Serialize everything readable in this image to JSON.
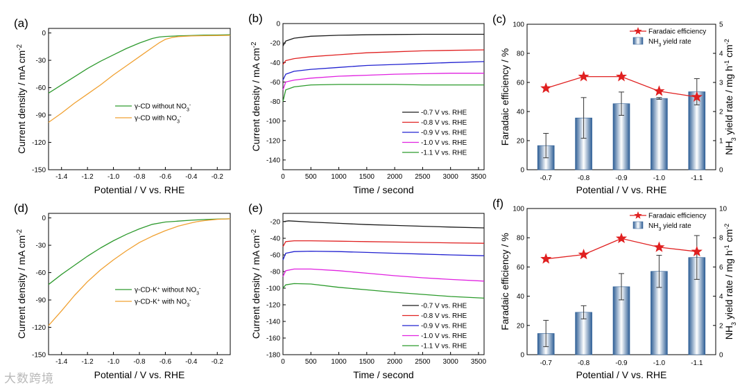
{
  "watermark": "大数跨境",
  "chart_data": [
    {
      "id": "a",
      "panel_label": "(a)",
      "type": "line",
      "title": "",
      "xlabel": "Potential / V vs. RHE",
      "ylabel": "Current density / mA cm⁻²",
      "xlim": [
        -1.5,
        -0.1
      ],
      "ylim": [
        -150,
        5
      ],
      "xticks": [
        -1.4,
        -1.2,
        -1.0,
        -0.8,
        -0.6,
        -0.4,
        -0.2
      ],
      "xticklabels": [
        "-1.4",
        "-1.2",
        "-1.0",
        "-0.8",
        "-0.6",
        "-0.4",
        "-0.2"
      ],
      "yticks": [
        0,
        -30,
        -60,
        -90,
        -120,
        -150
      ],
      "yticklabels": [
        "0",
        "-30",
        "-60",
        "-90",
        "-120",
        "-150"
      ],
      "legend_position": "center-right",
      "series": [
        {
          "name": "γ-CD without NO₃⁻",
          "color": "#2e9a2e",
          "x": [
            -1.5,
            -1.4,
            -1.3,
            -1.2,
            -1.1,
            -1.0,
            -0.9,
            -0.8,
            -0.7,
            -0.65,
            -0.6,
            -0.5,
            -0.4,
            -0.3,
            -0.2,
            -0.1
          ],
          "y": [
            -66,
            -57,
            -48,
            -39,
            -31,
            -24,
            -17,
            -11,
            -6,
            -4.5,
            -3.8,
            -3.2,
            -2.8,
            -2.4,
            -2.2,
            -2
          ]
        },
        {
          "name": "γ-CD with NO₃⁻",
          "color": "#f0a030",
          "x": [
            -1.5,
            -1.4,
            -1.3,
            -1.2,
            -1.1,
            -1.0,
            -0.9,
            -0.8,
            -0.7,
            -0.65,
            -0.6,
            -0.55,
            -0.5,
            -0.4,
            -0.3,
            -0.2,
            -0.1
          ],
          "y": [
            -98,
            -88,
            -77,
            -67,
            -57,
            -46,
            -36,
            -26,
            -16,
            -11,
            -7,
            -5,
            -4,
            -3.3,
            -3,
            -2.8,
            -2.6
          ]
        }
      ]
    },
    {
      "id": "b",
      "panel_label": "(b)",
      "type": "line",
      "title": "",
      "xlabel": "Time / second",
      "ylabel": "Current density / mA cm⁻²",
      "xlim": [
        0,
        3600
      ],
      "ylim": [
        -150,
        0
      ],
      "xticks": [
        0,
        500,
        1000,
        1500,
        2000,
        2500,
        3000,
        3500
      ],
      "xticklabels": [
        "0",
        "500",
        "1000",
        "1500",
        "2000",
        "2500",
        "3000",
        "3500"
      ],
      "yticks": [
        0,
        -20,
        -40,
        -60,
        -80,
        -100,
        -120,
        -140
      ],
      "yticklabels": [
        "0",
        "-20",
        "-40",
        "-60",
        "-80",
        "-100",
        "-120",
        "-140"
      ],
      "legend_position": "lower-right",
      "series": [
        {
          "name": "-0.7 V vs. RHE",
          "color": "#1a1a1a",
          "x": [
            0,
            50,
            200,
            500,
            1000,
            1500,
            2000,
            2500,
            3000,
            3600
          ],
          "y": [
            -23,
            -18,
            -15,
            -13,
            -12,
            -11.5,
            -11.2,
            -11,
            -11,
            -11
          ]
        },
        {
          "name": "-0.8 V vs. RHE",
          "color": "#e02020",
          "x": [
            0,
            50,
            200,
            500,
            1000,
            1500,
            2000,
            2500,
            3000,
            3600
          ],
          "y": [
            -42,
            -38,
            -36,
            -34,
            -32,
            -30,
            -29,
            -28,
            -27.5,
            -27
          ]
        },
        {
          "name": "-0.9 V vs. RHE",
          "color": "#2020d0",
          "x": [
            0,
            50,
            200,
            500,
            1000,
            1500,
            2000,
            2500,
            3000,
            3600
          ],
          "y": [
            -58,
            -52,
            -49,
            -47,
            -45,
            -43,
            -42,
            -41,
            -40,
            -39
          ]
        },
        {
          "name": "-1.0 V vs. RHE",
          "color": "#e020e0",
          "x": [
            0,
            50,
            200,
            500,
            1000,
            1500,
            2000,
            2500,
            3000,
            3600
          ],
          "y": [
            -68,
            -60,
            -58,
            -56,
            -54,
            -53,
            -52,
            -51.5,
            -51,
            -51
          ]
        },
        {
          "name": "-1.1 V vs. RHE",
          "color": "#2a9a2a",
          "x": [
            0,
            50,
            200,
            500,
            1000,
            1500,
            2000,
            2500,
            3000,
            3600
          ],
          "y": [
            -80,
            -68,
            -65,
            -63,
            -62.5,
            -62.5,
            -62.5,
            -63,
            -63,
            -63
          ]
        }
      ]
    },
    {
      "id": "c",
      "panel_label": "(c)",
      "type": "bar",
      "xlabel": "Potential / V vs. RHE",
      "ylabel": "Faradaic efficiency / %",
      "y2label": "NH₃ yield rate / mg h⁻¹ cm⁻²",
      "categories": [
        "-0.7",
        "-0.8",
        "-0.9",
        "-1.0",
        "-1.1"
      ],
      "ylim": [
        0,
        100
      ],
      "y2lim": [
        0,
        5
      ],
      "yticks": [
        0,
        20,
        40,
        60,
        80,
        100
      ],
      "yticklabels": [
        "0",
        "20",
        "40",
        "60",
        "80",
        "100"
      ],
      "y2ticks": [
        0,
        1,
        2,
        3,
        4,
        5
      ],
      "y2ticklabels": [
        "0",
        "1",
        "2",
        "3",
        "4",
        "5"
      ],
      "legend_position": "top-right",
      "series": [
        {
          "name": "Faradaic efficiency",
          "kind": "line-star",
          "axis": "left",
          "color": "#e02020",
          "values": [
            56,
            64,
            64,
            54,
            50
          ]
        },
        {
          "name": "NH₃ yield rate",
          "kind": "bar",
          "axis": "right",
          "color": "#5b86b8",
          "values": [
            0.83,
            1.78,
            2.27,
            2.45,
            2.68
          ],
          "errors": [
            0.42,
            0.7,
            0.4,
            0.03,
            0.45
          ]
        }
      ]
    },
    {
      "id": "d",
      "panel_label": "(d)",
      "type": "line",
      "title": "",
      "xlabel": "Potential / V vs. RHE",
      "ylabel": "Current density / mA cm⁻²",
      "xlim": [
        -1.5,
        -0.1
      ],
      "ylim": [
        -150,
        5
      ],
      "xticks": [
        -1.4,
        -1.2,
        -1.0,
        -0.8,
        -0.6,
        -0.4,
        -0.2
      ],
      "xticklabels": [
        "-1.4",
        "-1.2",
        "-1.0",
        "-0.8",
        "-0.6",
        "-0.4",
        "-0.2"
      ],
      "yticks": [
        0,
        -30,
        -60,
        -90,
        -120,
        -150
      ],
      "yticklabels": [
        "0",
        "-30",
        "-60",
        "-90",
        "-120",
        "-150"
      ],
      "legend_position": "center-right",
      "series": [
        {
          "name": "γ-CD-K⁺ without NO₃⁻",
          "color": "#2e9a2e",
          "x": [
            -1.5,
            -1.4,
            -1.3,
            -1.2,
            -1.1,
            -1.0,
            -0.9,
            -0.8,
            -0.7,
            -0.6,
            -0.5,
            -0.4,
            -0.3,
            -0.2,
            -0.1
          ],
          "y": [
            -73,
            -62,
            -52,
            -42,
            -33,
            -25,
            -18,
            -12,
            -7,
            -4.5,
            -3.5,
            -2.5,
            -1.8,
            -1.3,
            -1
          ]
        },
        {
          "name": "γ-CD-K⁺ with NO₃⁻",
          "color": "#f0a030",
          "x": [
            -1.5,
            -1.4,
            -1.3,
            -1.2,
            -1.1,
            -1.0,
            -0.9,
            -0.8,
            -0.7,
            -0.6,
            -0.5,
            -0.4,
            -0.35,
            -0.3,
            -0.2,
            -0.1
          ],
          "y": [
            -118,
            -102,
            -85,
            -70,
            -57,
            -46,
            -36,
            -27,
            -20,
            -14,
            -9,
            -5.5,
            -4,
            -3,
            -1.5,
            -1
          ]
        }
      ]
    },
    {
      "id": "e",
      "panel_label": "(e)",
      "type": "line",
      "title": "",
      "xlabel": "Time / second",
      "ylabel": "Current density / mA cm⁻²",
      "xlim": [
        0,
        3600
      ],
      "ylim": [
        -180,
        -10
      ],
      "xticks": [
        0,
        500,
        1000,
        1500,
        2000,
        2500,
        3000,
        3500
      ],
      "xticklabels": [
        "0",
        "500",
        "1000",
        "1500",
        "2000",
        "2500",
        "3000",
        "3500"
      ],
      "yticks": [
        -20,
        -40,
        -60,
        -80,
        -100,
        -120,
        -140,
        -160,
        -180
      ],
      "yticklabels": [
        "-20",
        "-40",
        "-60",
        "-80",
        "-100",
        "-120",
        "-140",
        "-160",
        "-180"
      ],
      "legend_position": "lower-right",
      "series": [
        {
          "name": "-0.7 V vs. RHE",
          "color": "#1a1a1a",
          "x": [
            0,
            100,
            500,
            1000,
            1500,
            2000,
            2500,
            3000,
            3600
          ],
          "y": [
            -20,
            -19,
            -20.5,
            -22,
            -23.5,
            -24.5,
            -25.5,
            -26.5,
            -27.5
          ]
        },
        {
          "name": "-0.8 V vs. RHE",
          "color": "#e02020",
          "x": [
            0,
            50,
            200,
            500,
            1000,
            1500,
            2000,
            2500,
            3000,
            3600
          ],
          "y": [
            -50,
            -44,
            -43,
            -43,
            -43.5,
            -44,
            -44.5,
            -45,
            -45.5,
            -46
          ]
        },
        {
          "name": "-0.9 V vs. RHE",
          "color": "#2020d0",
          "x": [
            0,
            50,
            200,
            500,
            1000,
            1500,
            2000,
            2500,
            3000,
            3600
          ],
          "y": [
            -66,
            -58,
            -56,
            -55.5,
            -56,
            -57,
            -58,
            -59,
            -60,
            -61
          ]
        },
        {
          "name": "-1.0 V vs. RHE",
          "color": "#e020e0",
          "x": [
            0,
            50,
            200,
            500,
            1000,
            1500,
            2000,
            2500,
            3000,
            3600
          ],
          "y": [
            -86,
            -79,
            -77,
            -77,
            -79,
            -82,
            -85,
            -87.5,
            -89.5,
            -91.5
          ]
        },
        {
          "name": "-1.1 V vs. RHE",
          "color": "#2a9a2a",
          "x": [
            0,
            50,
            200,
            500,
            1000,
            1500,
            2000,
            2500,
            3000,
            3600
          ],
          "y": [
            -100,
            -96,
            -94.5,
            -95,
            -99,
            -102,
            -105,
            -107.5,
            -110,
            -112
          ]
        }
      ]
    },
    {
      "id": "f",
      "panel_label": "(f)",
      "type": "bar",
      "xlabel": "Potential / V vs. RHE",
      "ylabel": "Faradaic efficiency / %",
      "y2label": "NH₃ yield rate / mg h⁻¹ cm⁻²",
      "categories": [
        "-0.7",
        "-0.8",
        "-0.9",
        "-1.0",
        "-1.1"
      ],
      "ylim": [
        0,
        100
      ],
      "y2lim": [
        0,
        10
      ],
      "yticks": [
        0,
        20,
        40,
        60,
        80,
        100
      ],
      "yticklabels": [
        "0",
        "20",
        "40",
        "60",
        "80",
        "100"
      ],
      "y2ticks": [
        0,
        2,
        4,
        6,
        8,
        10
      ],
      "y2ticklabels": [
        "0",
        "2",
        "4",
        "6",
        "8",
        "10"
      ],
      "legend_position": "top-right",
      "series": [
        {
          "name": "Faradaic efficiency",
          "kind": "line-star",
          "axis": "left",
          "color": "#e02020",
          "values": [
            65.5,
            68.5,
            79.5,
            73.5,
            70.5
          ]
        },
        {
          "name": "NH₃ yield rate",
          "kind": "bar",
          "axis": "right",
          "color": "#5b86b8",
          "values": [
            1.45,
            2.9,
            4.65,
            5.7,
            6.65
          ],
          "errors": [
            0.9,
            0.45,
            0.9,
            1.1,
            1.5
          ]
        }
      ]
    }
  ]
}
